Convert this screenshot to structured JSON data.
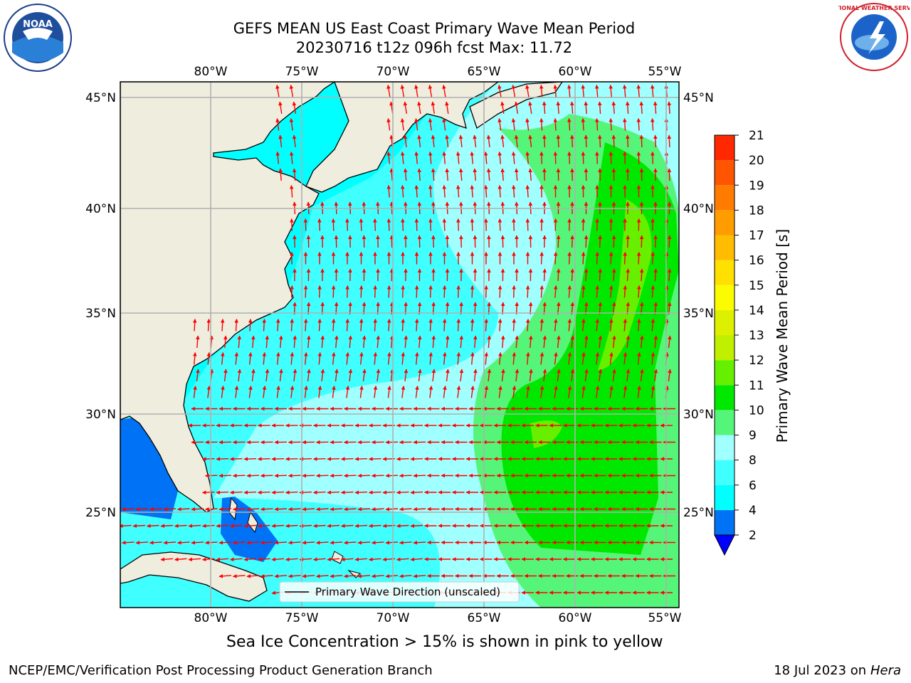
{
  "header": {
    "title_line1": "GEFS MEAN US East Coast Primary Wave Mean Period",
    "title_line2": "20230716 t12z 096h fcst   Max: 11.72"
  },
  "logos": {
    "left": {
      "name": "noaa-logo",
      "text": "NOAA",
      "ring_text": "NATIONAL OCEANIC AND ATMOSPHERIC ADMINISTRATION · U.S. DEPARTMENT OF COMMERCE"
    },
    "right": {
      "name": "nws-logo",
      "ring_text": "NATIONAL WEATHER SERVICE"
    }
  },
  "map": {
    "lon_ticks": [
      "80°W",
      "75°W",
      "70°W",
      "65°W",
      "60°W",
      "55°W"
    ],
    "lat_ticks": [
      "45°N",
      "40°N",
      "35°N",
      "30°N",
      "25°N"
    ],
    "legend_label": "Primary Wave Direction (unscaled)",
    "arrow_color": "#ff0000",
    "land_color": "#efedde"
  },
  "colorbar": {
    "title": "Primary Wave Mean Period [s]",
    "tick_labels": [
      "2",
      "4",
      "6",
      "8",
      "9",
      "10",
      "11",
      "12",
      "13",
      "14",
      "15",
      "16",
      "17",
      "18",
      "19",
      "20",
      "21"
    ],
    "colors": [
      "#0072f5",
      "#00ffff",
      "#40ffff",
      "#a0ffff",
      "#55f57a",
      "#00e800",
      "#66f000",
      "#c0f000",
      "#ddf000",
      "#fcfc00",
      "#ffe000",
      "#ffbc00",
      "#ff9c00",
      "#ff7c00",
      "#ff5400",
      "#ff2800"
    ],
    "extend_color": "#0000ff"
  },
  "caption": "Sea Ice Concentration > 15% is shown in pink to yellow",
  "footer": {
    "left": "NCEP/EMC/Verification Post Processing Product Generation Branch",
    "right_prefix": "18 Jul 2023 on ",
    "right_host": "Hera"
  }
}
